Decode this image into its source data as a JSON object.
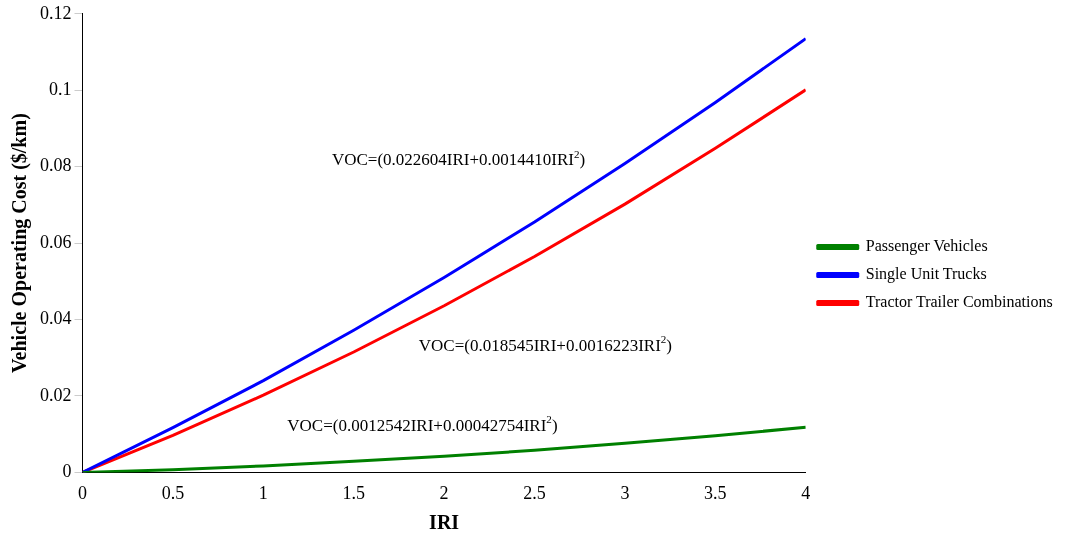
{
  "chart_data": {
    "type": "line",
    "xlabel": "IRI",
    "ylabel": "Vehicle Operating Cost ($/km)",
    "x": [
      0,
      0.5,
      1,
      1.5,
      2,
      2.5,
      3,
      3.5,
      4
    ],
    "series": [
      {
        "name": "Passenger Vehicles",
        "color": "#008000",
        "values": [
          0,
          0.0007,
          0.0017,
          0.0029,
          0.0042,
          0.0058,
          0.0076,
          0.0096,
          0.0118
        ]
      },
      {
        "name": "Single Unit Trucks",
        "color": "#0000ff",
        "values": [
          0,
          0.0117,
          0.024,
          0.0372,
          0.051,
          0.0655,
          0.0808,
          0.0968,
          0.1135
        ]
      },
      {
        "name": "Tractor Trailer Combinations",
        "color": "#ff0000",
        "values": [
          0,
          0.0097,
          0.0202,
          0.0315,
          0.0436,
          0.0565,
          0.0702,
          0.0848,
          0.1001
        ]
      }
    ],
    "xlim": [
      0,
      4
    ],
    "xticks": [
      0,
      0.5,
      1,
      1.5,
      2,
      2.5,
      3,
      3.5,
      4
    ],
    "ylim": [
      0,
      0.12
    ],
    "yticks": [
      0,
      0.02,
      0.04,
      0.06,
      0.08,
      0.1,
      0.12
    ],
    "grid": false,
    "legend": "right",
    "marker": "none",
    "line_style": "solid",
    "annotations": [
      "VOC=(0.022604IRI+0.0014410IRI$^{2}$)",
      "VOC=(0.018545IRI+0.0016223IRI$^{2}$)",
      "VOC=(0.0012542IRI+0.00042754IRI$^{2}$)"
    ]
  }
}
